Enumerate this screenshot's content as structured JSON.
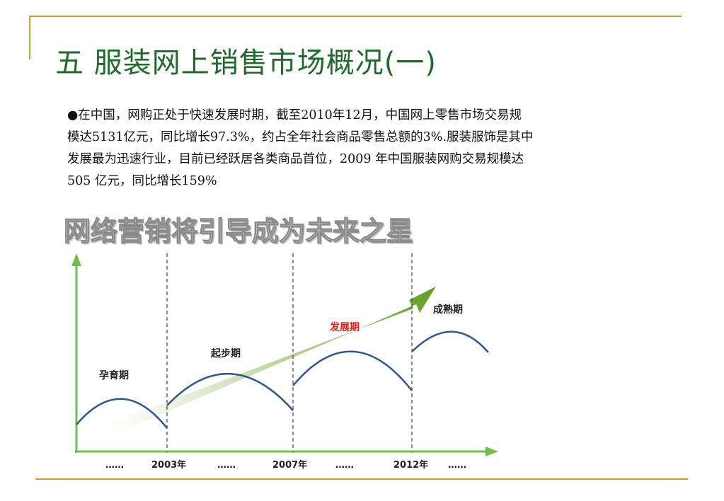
{
  "title": "五  服装网上销售市场概况(一)",
  "body_lines": [
    "●在中国，网购正处于快速发展时期，截至2010年12月，中国网上零售市场交易规",
    "模达5131亿元，同比增长97.3%，约占全年社会商品零售总额的3%.服装服饰是其中",
    "发展最为迅速行业，目前已经跃居各类商品首位，2009 年中国服装网购交易规模达",
    "505 亿元，同比增长159%"
  ],
  "headline": "网络营销将引导成为未来之星",
  "diagram": {
    "stages": [
      "孕育期",
      "起步期",
      "发展期",
      "成熟期"
    ],
    "axis_labels": [
      "……",
      "2003年",
      "……",
      "2007年",
      "……",
      "2012年",
      "……"
    ]
  },
  "colors": {
    "title": "#1f6b2a",
    "frame": "#c9a227",
    "axis": "#6cc04a",
    "curve": "#2b5796",
    "arrow": "#6aa521",
    "highlight_stage": "#e8211c"
  }
}
